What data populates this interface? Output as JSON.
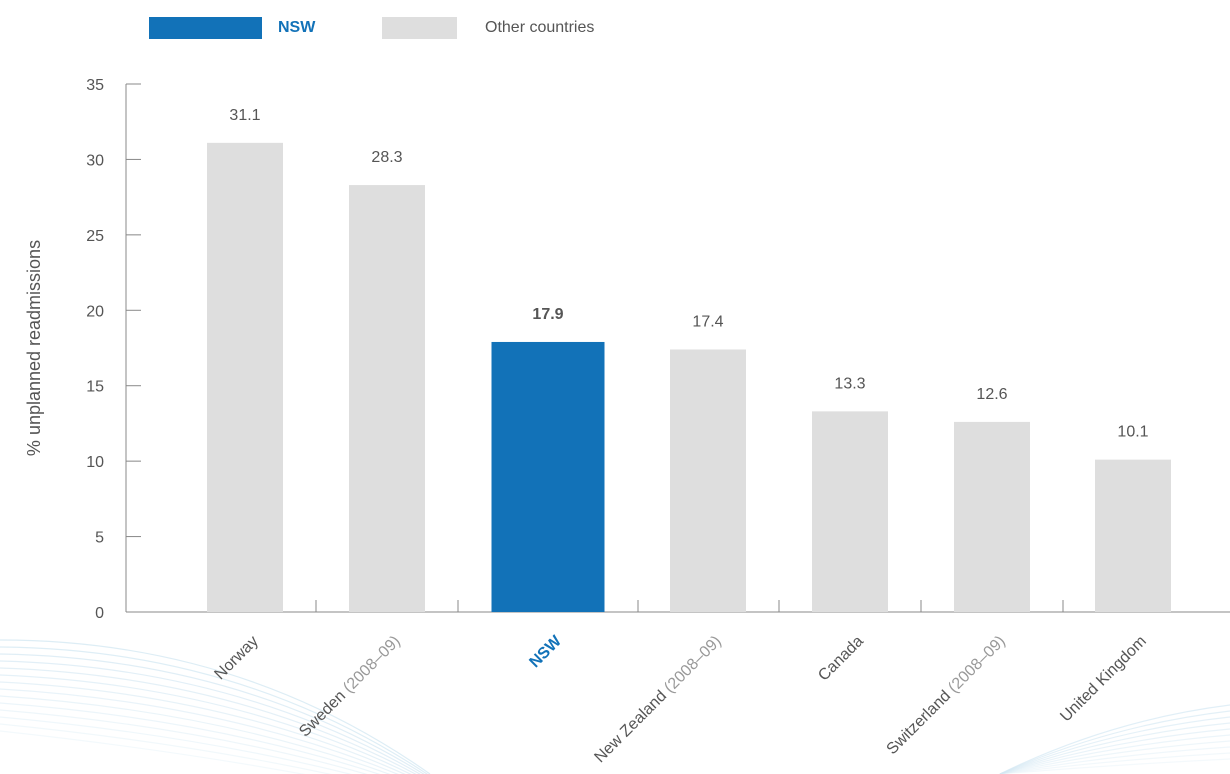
{
  "chart_data": {
    "type": "bar",
    "ylabel": "% unplanned readmissions",
    "ylim": [
      0,
      35
    ],
    "yticks": [
      0,
      5,
      10,
      15,
      20,
      25,
      30,
      35
    ],
    "grid": false,
    "legend_position": "top-left",
    "legend": [
      {
        "name": "NSW",
        "color": "#1272b8"
      },
      {
        "name": "Other countries",
        "color": "#dedede"
      }
    ],
    "categories": [
      {
        "name": "Norway",
        "period": "",
        "value": 31.1,
        "highlight": false
      },
      {
        "name": "Sweden",
        "period": "(2008–09)",
        "value": 28.3,
        "highlight": false
      },
      {
        "name": "NSW",
        "period": "",
        "value": 17.9,
        "highlight": true
      },
      {
        "name": "New Zealand",
        "period": "(2008–09)",
        "value": 17.4,
        "highlight": false
      },
      {
        "name": "Canada",
        "period": "",
        "value": 13.3,
        "highlight": false
      },
      {
        "name": "Switzerland",
        "period": "(2008–09)",
        "value": 12.6,
        "highlight": false
      },
      {
        "name": "United Kingdom",
        "period": "",
        "value": 10.1,
        "highlight": false
      }
    ],
    "colors": {
      "highlight": "#1272b8",
      "other": "#dedede",
      "axis": "#888888",
      "text": "#555555"
    }
  }
}
